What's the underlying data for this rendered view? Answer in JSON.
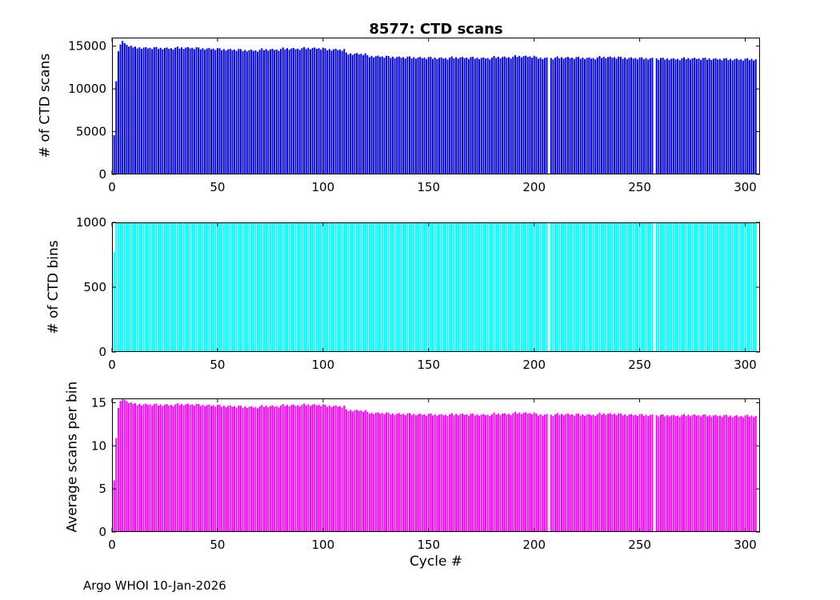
{
  "title": "8577: CTD scans",
  "footer": "Argo WHOI 10-Jan-2026",
  "chart_data": [
    {
      "type": "bar",
      "title": "8577: CTD scans",
      "ylabel": "# of CTD scans",
      "xlabel": "",
      "color": "#0000EE",
      "xlim": [
        0,
        307
      ],
      "ylim": [
        0,
        16000
      ],
      "xticks": [
        0,
        50,
        100,
        150,
        200,
        250,
        300
      ],
      "yticks": [
        0,
        5000,
        10000,
        15000
      ],
      "x_start": 1,
      "values": [
        4600,
        10900,
        14400,
        15200,
        15600,
        15350,
        15150,
        14950,
        15050,
        14850,
        14950,
        14720,
        14860,
        14680,
        14830,
        14890,
        14740,
        14810,
        14650,
        14870,
        14900,
        14670,
        14810,
        14630,
        14780,
        14840,
        14690,
        14760,
        14600,
        14820,
        14950,
        14720,
        14860,
        14680,
        14830,
        14890,
        14740,
        14810,
        14650,
        14870,
        14850,
        14620,
        14760,
        14580,
        14730,
        14790,
        14640,
        14710,
        14550,
        14770,
        14750,
        14520,
        14660,
        14480,
        14630,
        14690,
        14540,
        14610,
        14450,
        14670,
        14650,
        14420,
        14560,
        14380,
        14530,
        14590,
        14440,
        14510,
        14350,
        14570,
        14750,
        14520,
        14660,
        14480,
        14630,
        14690,
        14540,
        14610,
        14450,
        14670,
        14850,
        14620,
        14760,
        14580,
        14730,
        14790,
        14640,
        14710,
        14550,
        14770,
        14900,
        14670,
        14810,
        14630,
        14780,
        14840,
        14690,
        14760,
        14600,
        14820,
        14750,
        14520,
        14660,
        14480,
        14630,
        14690,
        14540,
        14610,
        14450,
        14670,
        14250,
        14020,
        14160,
        13980,
        14130,
        14190,
        14040,
        14110,
        13950,
        14170,
        13950,
        13720,
        13860,
        13680,
        13830,
        13890,
        13740,
        13810,
        13650,
        13870,
        13850,
        13620,
        13760,
        13580,
        13730,
        13790,
        13640,
        13710,
        13550,
        13770,
        13800,
        13570,
        13710,
        13530,
        13680,
        13740,
        13590,
        13660,
        13500,
        13720,
        13750,
        13520,
        13660,
        13480,
        13630,
        13690,
        13540,
        13610,
        13450,
        13670,
        13800,
        13570,
        13710,
        13530,
        13680,
        13740,
        13590,
        13660,
        13500,
        13720,
        13750,
        13520,
        13660,
        13480,
        13630,
        13690,
        13540,
        13610,
        13450,
        13670,
        13850,
        13620,
        13760,
        13580,
        13730,
        13790,
        13640,
        13710,
        13550,
        13770,
        13950,
        13720,
        13860,
        13680,
        13830,
        13890,
        13740,
        13810,
        13650,
        13870,
        13750,
        13520,
        13660,
        13480,
        13630,
        13690,
        0,
        13610,
        13450,
        13670,
        13800,
        13570,
        13710,
        13530,
        13680,
        13740,
        13590,
        13660,
        13500,
        13720,
        13750,
        13520,
        13660,
        13480,
        13630,
        13690,
        13540,
        13610,
        13450,
        13670,
        13850,
        13620,
        13760,
        13580,
        13730,
        13790,
        13640,
        13710,
        13550,
        13770,
        13750,
        13520,
        13660,
        13480,
        13630,
        13690,
        13540,
        13610,
        13450,
        13670,
        13700,
        13470,
        13610,
        13430,
        13580,
        13640,
        0,
        13560,
        13400,
        13620,
        13650,
        13420,
        13560,
        13380,
        13530,
        13590,
        13440,
        13510,
        13350,
        13570,
        13700,
        13470,
        13610,
        13430,
        13580,
        13640,
        13490,
        13560,
        13400,
        13620,
        13650,
        13420,
        13560,
        13380,
        13530,
        13590,
        13440,
        13510,
        13350,
        13570,
        13600,
        13370,
        13510,
        13330,
        13480,
        13540,
        13390,
        13460,
        13300,
        13520,
        13600,
        13370,
        13510,
        13330,
        13480
      ]
    },
    {
      "type": "bar",
      "title": "",
      "ylabel": "# of CTD bins",
      "xlabel": "",
      "color": "#00FFFF",
      "xlim": [
        0,
        307
      ],
      "ylim": [
        0,
        1000
      ],
      "xticks": [
        0,
        50,
        100,
        150,
        200,
        250,
        300
      ],
      "yticks": [
        0,
        500,
        1000
      ],
      "x_start": 1,
      "values": [
        770,
        1000,
        1000,
        1000,
        1000,
        1000,
        1000,
        1000,
        1000,
        1000,
        1000,
        1000,
        1000,
        1000,
        1000,
        1000,
        1000,
        1000,
        1000,
        1000,
        1000,
        1000,
        1000,
        1000,
        1000,
        1000,
        1000,
        1000,
        1000,
        1000,
        1000,
        1000,
        1000,
        1000,
        1000,
        1000,
        1000,
        1000,
        1000,
        1000,
        1000,
        1000,
        1000,
        1000,
        1000,
        1000,
        1000,
        1000,
        1000,
        1000,
        1000,
        1000,
        1000,
        1000,
        1000,
        1000,
        1000,
        1000,
        1000,
        1000,
        1000,
        1000,
        1000,
        1000,
        1000,
        1000,
        1000,
        1000,
        1000,
        1000,
        1000,
        1000,
        1000,
        1000,
        1000,
        1000,
        1000,
        1000,
        1000,
        1000,
        1000,
        1000,
        1000,
        1000,
        1000,
        1000,
        1000,
        1000,
        1000,
        1000,
        1000,
        1000,
        1000,
        1000,
        1000,
        1000,
        1000,
        1000,
        1000,
        1000,
        1000,
        1000,
        1000,
        1000,
        1000,
        1000,
        1000,
        1000,
        1000,
        1000,
        1000,
        1000,
        1000,
        1000,
        1000,
        1000,
        1000,
        1000,
        1000,
        1000,
        1000,
        1000,
        1000,
        1000,
        1000,
        1000,
        1000,
        1000,
        1000,
        1000,
        1000,
        1000,
        1000,
        1000,
        1000,
        1000,
        1000,
        1000,
        1000,
        1000,
        1000,
        1000,
        1000,
        1000,
        1000,
        1000,
        1000,
        1000,
        1000,
        1000,
        1000,
        1000,
        1000,
        1000,
        1000,
        1000,
        1000,
        1000,
        1000,
        1000,
        1000,
        1000,
        1000,
        1000,
        1000,
        1000,
        1000,
        1000,
        1000,
        1000,
        1000,
        1000,
        1000,
        1000,
        1000,
        1000,
        1000,
        1000,
        1000,
        1000,
        1000,
        1000,
        1000,
        1000,
        1000,
        1000,
        1000,
        1000,
        1000,
        1000,
        1000,
        1000,
        1000,
        1000,
        1000,
        1000,
        1000,
        1000,
        1000,
        1000,
        1000,
        1000,
        1000,
        1000,
        1000,
        1000,
        0,
        1000,
        1000,
        1000,
        1000,
        1000,
        1000,
        1000,
        1000,
        1000,
        1000,
        1000,
        1000,
        1000,
        1000,
        1000,
        1000,
        1000,
        1000,
        1000,
        1000,
        1000,
        1000,
        1000,
        1000,
        1000,
        1000,
        1000,
        1000,
        1000,
        1000,
        1000,
        1000,
        1000,
        1000,
        1000,
        1000,
        1000,
        1000,
        1000,
        1000,
        1000,
        1000,
        1000,
        1000,
        1000,
        1000,
        1000,
        1000,
        1000,
        0,
        1000,
        1000,
        1000,
        1000,
        1000,
        1000,
        1000,
        1000,
        1000,
        1000,
        1000,
        1000,
        1000,
        1000,
        1000,
        1000,
        1000,
        1000,
        1000,
        1000,
        1000,
        1000,
        1000,
        1000,
        1000,
        1000,
        1000,
        1000,
        1000,
        1000,
        1000,
        1000,
        1000,
        1000,
        1000,
        1000,
        1000,
        1000,
        1000,
        1000,
        1000,
        1000,
        1000,
        1000,
        1000,
        1000,
        1000,
        1000
      ]
    },
    {
      "type": "bar",
      "title": "",
      "ylabel": "Average scans per bin",
      "xlabel": "Cycle #",
      "color": "#FF00FF",
      "xlim": [
        0,
        307
      ],
      "ylim": [
        0,
        15.5
      ],
      "xticks": [
        0,
        50,
        100,
        150,
        200,
        250,
        300
      ],
      "yticks": [
        0,
        5,
        10,
        15
      ],
      "x_start": 1,
      "values": [
        5.97,
        10.9,
        14.4,
        15.2,
        15.5,
        15.35,
        15.15,
        14.95,
        15.05,
        14.85,
        14.95,
        14.72,
        14.86,
        14.68,
        14.83,
        14.89,
        14.74,
        14.81,
        14.65,
        14.87,
        14.9,
        14.67,
        14.81,
        14.63,
        14.78,
        14.84,
        14.69,
        14.76,
        14.6,
        14.82,
        14.95,
        14.72,
        14.86,
        14.68,
        14.83,
        14.89,
        14.74,
        14.81,
        14.65,
        14.87,
        14.85,
        14.62,
        14.76,
        14.58,
        14.73,
        14.79,
        14.64,
        14.71,
        14.55,
        14.77,
        14.75,
        14.52,
        14.66,
        14.48,
        14.63,
        14.69,
        14.54,
        14.61,
        14.45,
        14.67,
        14.65,
        14.42,
        14.56,
        14.38,
        14.53,
        14.59,
        14.44,
        14.51,
        14.35,
        14.57,
        14.75,
        14.52,
        14.66,
        14.48,
        14.63,
        14.69,
        14.54,
        14.61,
        14.45,
        14.67,
        14.85,
        14.62,
        14.76,
        14.58,
        14.73,
        14.79,
        14.64,
        14.71,
        14.55,
        14.77,
        14.9,
        14.67,
        14.81,
        14.63,
        14.78,
        14.84,
        14.69,
        14.76,
        14.6,
        14.82,
        14.75,
        14.52,
        14.66,
        14.48,
        14.63,
        14.69,
        14.54,
        14.61,
        14.45,
        14.67,
        14.25,
        14.02,
        14.16,
        13.98,
        14.13,
        14.19,
        14.04,
        14.11,
        13.95,
        14.17,
        13.95,
        13.72,
        13.86,
        13.68,
        13.83,
        13.89,
        13.74,
        13.81,
        13.65,
        13.87,
        13.85,
        13.62,
        13.76,
        13.58,
        13.73,
        13.79,
        13.64,
        13.71,
        13.55,
        13.77,
        13.8,
        13.57,
        13.71,
        13.53,
        13.68,
        13.74,
        13.59,
        13.66,
        13.5,
        13.72,
        13.75,
        13.52,
        13.66,
        13.48,
        13.63,
        13.69,
        13.54,
        13.61,
        13.45,
        13.67,
        13.8,
        13.57,
        13.71,
        13.53,
        13.68,
        13.74,
        13.59,
        13.66,
        13.5,
        13.72,
        13.75,
        13.52,
        13.66,
        13.48,
        13.63,
        13.69,
        13.54,
        13.61,
        13.45,
        13.67,
        13.85,
        13.62,
        13.76,
        13.58,
        13.73,
        13.79,
        13.64,
        13.71,
        13.55,
        13.77,
        13.95,
        13.72,
        13.86,
        13.68,
        13.83,
        13.89,
        13.74,
        13.81,
        13.65,
        13.87,
        13.75,
        13.52,
        13.66,
        13.48,
        13.63,
        13.69,
        0,
        13.61,
        13.45,
        13.67,
        13.8,
        13.57,
        13.71,
        13.53,
        13.68,
        13.74,
        13.59,
        13.66,
        13.5,
        13.72,
        13.75,
        13.52,
        13.66,
        13.48,
        13.63,
        13.69,
        13.54,
        13.61,
        13.45,
        13.67,
        13.85,
        13.62,
        13.76,
        13.58,
        13.73,
        13.79,
        13.64,
        13.71,
        13.55,
        13.77,
        13.75,
        13.52,
        13.66,
        13.48,
        13.63,
        13.69,
        13.54,
        13.61,
        13.45,
        13.67,
        13.7,
        13.47,
        13.61,
        13.43,
        13.58,
        13.64,
        0,
        13.56,
        13.4,
        13.62,
        13.65,
        13.42,
        13.56,
        13.38,
        13.53,
        13.59,
        13.44,
        13.51,
        13.35,
        13.57,
        13.7,
        13.47,
        13.61,
        13.43,
        13.58,
        13.64,
        13.49,
        13.56,
        13.4,
        13.62,
        13.65,
        13.42,
        13.56,
        13.38,
        13.53,
        13.59,
        13.44,
        13.51,
        13.35,
        13.57,
        13.6,
        13.37,
        13.51,
        13.33,
        13.48,
        13.54,
        13.39,
        13.46,
        13.3,
        13.52,
        13.6,
        13.37,
        13.51,
        13.33,
        13.48
      ]
    }
  ]
}
